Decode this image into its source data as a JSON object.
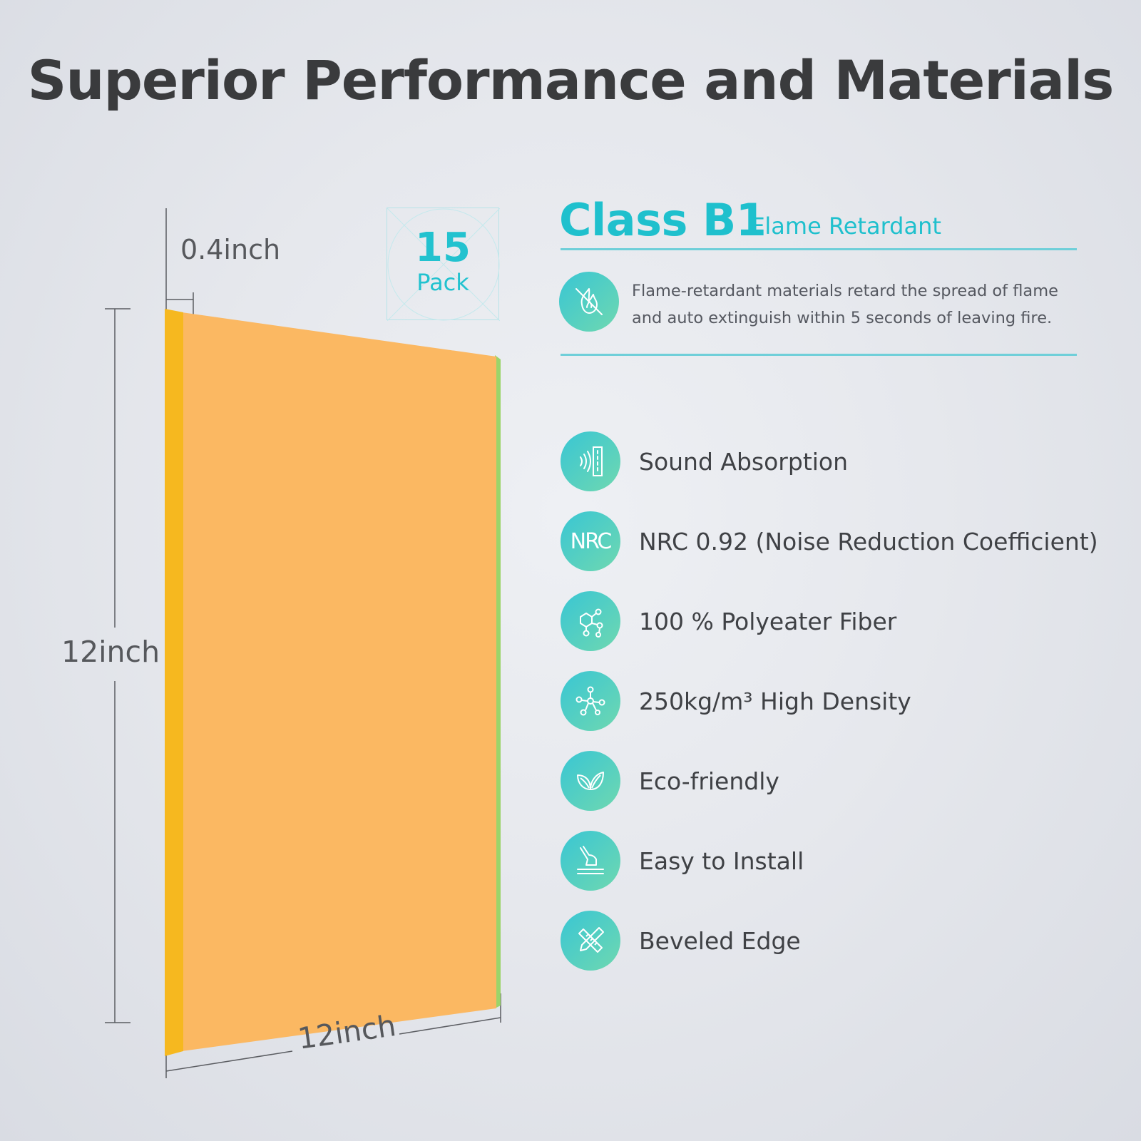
{
  "title": "Superior Performance and Materials",
  "dimensions": {
    "thickness": "0.4inch",
    "height": "12inch",
    "width": "12inch"
  },
  "pack": {
    "count": "15",
    "label": "Pack"
  },
  "panel_color": "#fbb862",
  "accent_color": "#1fc0cd",
  "flame": {
    "class_label": "Class B1",
    "subtitle": "Flame Retardant",
    "icon": "no-fire-icon",
    "description": "Flame-retardant materials retard the spread of flame and auto extinguish within 5 seconds of leaving fire."
  },
  "features": [
    {
      "icon": "sound-waves-icon",
      "label": "Sound Absorption"
    },
    {
      "icon": "nrc-icon",
      "icon_text": "NRC",
      "label": "NRC 0.92 (Noise Reduction Coefficient)"
    },
    {
      "icon": "molecule-hexagon-icon",
      "label": "100 % Polyeater Fiber"
    },
    {
      "icon": "molecule-nodes-icon",
      "label": "250kg/m³ High Density"
    },
    {
      "icon": "leaf-icon",
      "label": "Eco-friendly"
    },
    {
      "icon": "hand-install-icon",
      "label": "Easy to Install"
    },
    {
      "icon": "ruler-pencil-icon",
      "label": "Beveled Edge"
    }
  ]
}
